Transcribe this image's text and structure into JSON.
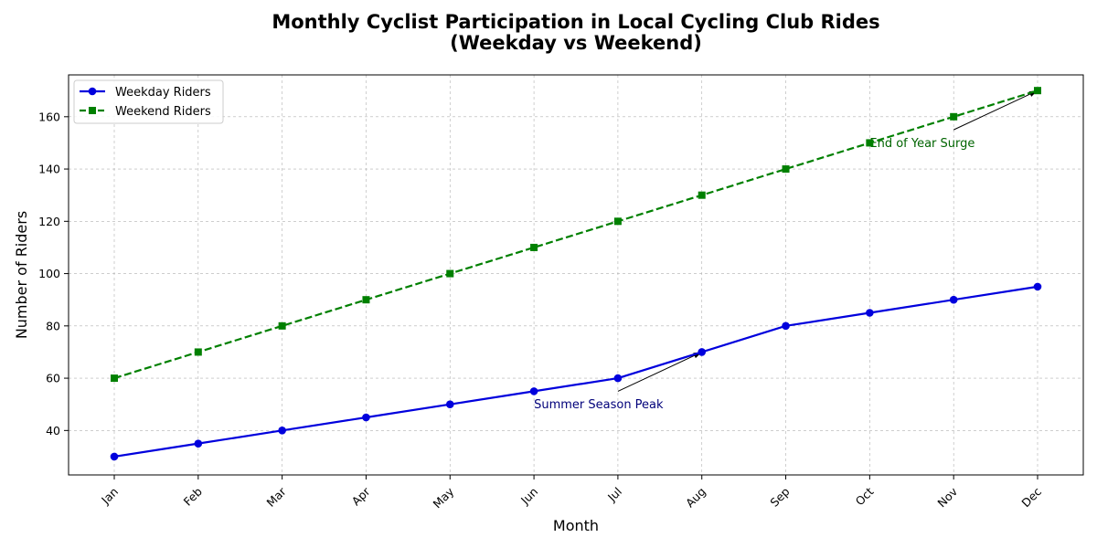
{
  "chart_data": {
    "type": "line",
    "title_line1": "Monthly Cyclist Participation in Local Cycling Club Rides",
    "title_line2": "(Weekday vs Weekend)",
    "xlabel": "Month",
    "ylabel": "Number of Riders",
    "categories": [
      "Jan",
      "Feb",
      "Mar",
      "Apr",
      "May",
      "Jun",
      "Jul",
      "Aug",
      "Sep",
      "Oct",
      "Nov",
      "Dec"
    ],
    "ylim": [
      23,
      176
    ],
    "yticks": [
      40,
      60,
      80,
      100,
      120,
      140,
      160
    ],
    "grid": true,
    "legend_position": "top-left",
    "series": [
      {
        "name": "Weekday Riders",
        "color": "#0000dd",
        "line_style": "solid",
        "marker": "circle",
        "values": [
          30,
          35,
          40,
          45,
          50,
          55,
          60,
          70,
          80,
          85,
          90,
          95
        ]
      },
      {
        "name": "Weekend Riders",
        "color": "#008000",
        "line_style": "dashed",
        "marker": "square",
        "values": [
          60,
          70,
          80,
          90,
          100,
          110,
          120,
          130,
          140,
          150,
          160,
          170
        ]
      }
    ],
    "annotations": [
      {
        "text": "Summer Season Peak",
        "color": "#00007a",
        "point": {
          "x": "Aug",
          "y": 70
        },
        "text_at": {
          "x": "Jun",
          "y": 50
        },
        "arrow_from": {
          "x": "Jul",
          "y": 55
        }
      },
      {
        "text": "End of Year Surge",
        "color": "#006400",
        "point": {
          "x": "Dec",
          "y": 170
        },
        "text_at": {
          "x": "Oct",
          "y": 150
        },
        "arrow_from": {
          "x": "Nov",
          "y": 155
        }
      }
    ]
  }
}
